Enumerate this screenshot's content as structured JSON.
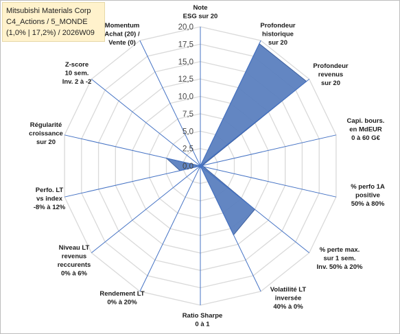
{
  "title_box": {
    "line1": "Mitsubishi Materials Corp",
    "line2": "C4_Actions / 5_MONDE",
    "line3": "(1,0% | 17,2%) / 2026W09"
  },
  "chart_data": {
    "type": "radar",
    "range": [
      0,
      20
    ],
    "ticks": [
      "0,0",
      "2,5",
      "5,0",
      "7,5",
      "10,0",
      "12,5",
      "15,0",
      "17,5",
      "20,0"
    ],
    "tick_values": [
      0,
      2.5,
      5,
      7.5,
      10,
      12.5,
      15,
      17.5,
      20
    ],
    "axes": [
      {
        "lines": [
          "Note",
          "ESG sur 20"
        ],
        "value": 0
      },
      {
        "lines": [
          "Profondeur",
          "historique",
          "sur 20"
        ],
        "value": 19.5
      },
      {
        "lines": [
          "Profondeur",
          "revenus",
          "sur 20"
        ],
        "value": 19.5
      },
      {
        "lines": [
          "Capi. bours.",
          "en MdEUR",
          "0 à 60 G€"
        ],
        "value": 0.3
      },
      {
        "lines": [
          "% perfo 1A",
          "positive",
          "50% à 80%"
        ],
        "value": 0.5
      },
      {
        "lines": [
          "% perte max.",
          "sur 1 sem.",
          "Inv. 50% à 20%"
        ],
        "value": 10
      },
      {
        "lines": [
          "Volatilité LT",
          "inversée",
          "40% à 0%"
        ],
        "value": 11
      },
      {
        "lines": [
          "Ratio Sharpe",
          "0 à 1"
        ],
        "value": 0
      },
      {
        "lines": [
          "Rendement LT",
          "0% à 20%"
        ],
        "value": 0
      },
      {
        "lines": [
          "Niveau LT",
          "revenus",
          "reccurents",
          "0% à 6%"
        ],
        "value": 0
      },
      {
        "lines": [
          "Perfo. LT",
          "vs index",
          "-8% à 12%"
        ],
        "value": 3
      },
      {
        "lines": [
          "Régularité",
          "croissance",
          "sur 20"
        ],
        "value": 5
      },
      {
        "lines": [
          "Z-score",
          "10 sem.",
          "Inv. 2 à -2"
        ],
        "value": 0
      },
      {
        "lines": [
          "Momentum",
          "Achat (20) /",
          "Vente (0)"
        ],
        "value": 0
      }
    ],
    "colors": {
      "fill": "#5b7fbf",
      "stroke": "#3d5f9e",
      "axis": "#4472c4",
      "grid": "#d9d9d9"
    }
  }
}
